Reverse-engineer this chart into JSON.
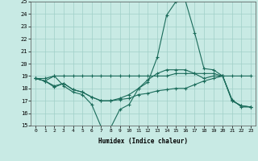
{
  "xlabel": "Humidex (Indice chaleur)",
  "xlim": [
    -0.5,
    23.5
  ],
  "ylim": [
    15,
    25
  ],
  "yticks": [
    15,
    16,
    17,
    18,
    19,
    20,
    21,
    22,
    23,
    24,
    25
  ],
  "xticks": [
    0,
    1,
    2,
    3,
    4,
    5,
    6,
    7,
    8,
    9,
    10,
    11,
    12,
    13,
    14,
    15,
    16,
    17,
    18,
    19,
    20,
    21,
    22,
    23
  ],
  "bg_color": "#c8eae4",
  "line_color": "#1a6b5a",
  "grid_color": "#a0cfc8",
  "lines": [
    {
      "x": [
        0,
        1,
        2,
        3,
        4,
        5,
        6,
        7,
        8,
        9,
        10,
        11,
        12,
        13,
        14,
        15,
        16,
        17,
        18,
        19,
        20,
        21,
        22,
        23
      ],
      "y": [
        18.8,
        18.6,
        19.0,
        18.2,
        17.7,
        17.5,
        16.7,
        14.9,
        14.8,
        16.3,
        16.7,
        18.0,
        18.5,
        20.5,
        23.9,
        25.0,
        25.1,
        22.5,
        19.6,
        19.5,
        19.0,
        17.1,
        16.5,
        16.5
      ]
    },
    {
      "x": [
        0,
        1,
        2,
        3,
        4,
        5,
        6,
        7,
        8,
        9,
        10,
        11,
        12,
        13,
        14,
        15,
        16,
        17,
        18,
        19,
        20,
        21,
        22,
        23
      ],
      "y": [
        18.8,
        18.8,
        19.0,
        19.0,
        19.0,
        19.0,
        19.0,
        19.0,
        19.0,
        19.0,
        19.0,
        19.0,
        19.0,
        19.0,
        19.0,
        19.2,
        19.2,
        19.2,
        19.2,
        19.2,
        19.0,
        19.0,
        19.0,
        19.0
      ]
    },
    {
      "x": [
        0,
        1,
        2,
        3,
        4,
        5,
        6,
        7,
        8,
        9,
        10,
        11,
        12,
        13,
        14,
        15,
        16,
        17,
        18,
        19,
        20,
        21,
        22,
        23
      ],
      "y": [
        18.8,
        18.6,
        18.2,
        18.4,
        17.9,
        17.7,
        17.3,
        17.0,
        17.0,
        17.2,
        17.5,
        18.0,
        18.7,
        19.2,
        19.5,
        19.5,
        19.5,
        19.2,
        18.8,
        19.0,
        19.0,
        17.0,
        16.6,
        16.5
      ]
    },
    {
      "x": [
        0,
        1,
        2,
        3,
        4,
        5,
        6,
        7,
        8,
        9,
        10,
        11,
        12,
        13,
        14,
        15,
        16,
        17,
        18,
        19,
        20,
        21,
        22,
        23
      ],
      "y": [
        18.8,
        18.6,
        18.1,
        18.4,
        17.9,
        17.7,
        17.3,
        17.0,
        17.0,
        17.1,
        17.2,
        17.5,
        17.6,
        17.8,
        17.9,
        18.0,
        18.0,
        18.3,
        18.6,
        18.8,
        19.0,
        17.0,
        16.6,
        16.5
      ]
    }
  ]
}
